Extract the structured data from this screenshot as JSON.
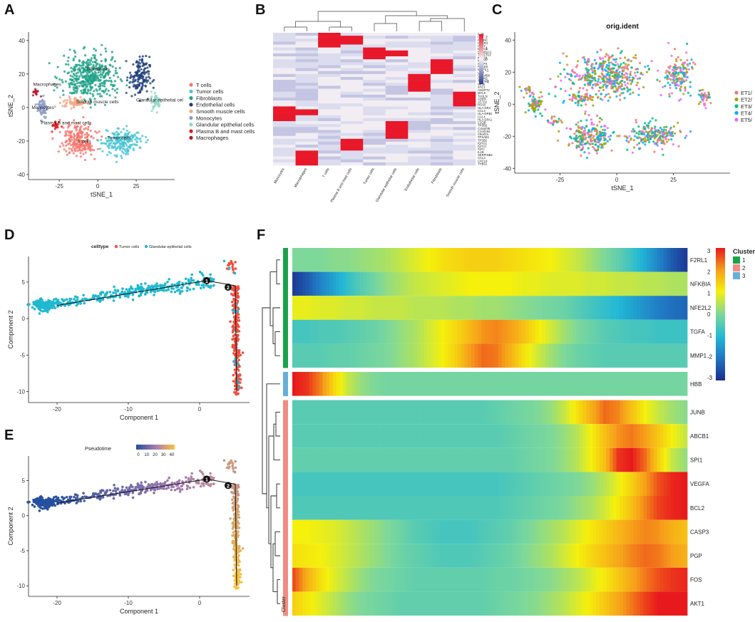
{
  "figure": {
    "panel_labels": [
      "A",
      "B",
      "C",
      "D",
      "E",
      "F"
    ]
  },
  "chart_data": [
    {
      "id": "A",
      "type": "scatter",
      "title": "",
      "xlabel": "tSNE_1",
      "ylabel": "tSNE_2",
      "xlim": [
        -45,
        50
      ],
      "ylim": [
        -43,
        45
      ],
      "xticks": [
        "-25",
        "0",
        "25"
      ],
      "xtick_values": [
        -25,
        0,
        25
      ],
      "yticks": [
        "40",
        "20",
        "0",
        "-20",
        "-40"
      ],
      "ytick_values": [
        40,
        20,
        0,
        -20,
        -40
      ],
      "legend_position": "right",
      "legend": [
        {
          "label": "T cells",
          "color": "#f8766d"
        },
        {
          "label": "Tumor cells",
          "color": "#4bc6d4"
        },
        {
          "label": "Fibroblasts",
          "color": "#1fa187"
        },
        {
          "label": "Endothelial cells",
          "color": "#1e3f7a"
        },
        {
          "label": "Smooth muscle cells",
          "color": "#f4a582"
        },
        {
          "label": "Monocytes",
          "color": "#8e9cc7"
        },
        {
          "label": "Glandular epithelial cells",
          "color": "#8fd6c0"
        },
        {
          "label": "Plasma B and mast cells",
          "color": "#e31a1c"
        },
        {
          "label": "Macrophages",
          "color": "#b2182b"
        }
      ],
      "clusters": [
        {
          "label": "T cells",
          "center": [
            -12,
            -20
          ],
          "spread": [
            9,
            9
          ],
          "n": 220,
          "color": "#f8766d"
        },
        {
          "label": "Tumor cells",
          "center": [
            16,
            -20
          ],
          "spread": [
            11,
            7
          ],
          "n": 200,
          "color": "#4bc6d4"
        },
        {
          "label": "Fibroblasts",
          "center": [
            -5,
            18
          ],
          "spread": [
            16,
            12
          ],
          "n": 420,
          "color": "#1fa187"
        },
        {
          "label": "Endothelial cells",
          "center": [
            27,
            18
          ],
          "spread": [
            6,
            11
          ],
          "n": 150,
          "color": "#1e3f7a"
        },
        {
          "label": "Smooth muscle cells",
          "center": [
            -15,
            3
          ],
          "spread": [
            7,
            3
          ],
          "n": 60,
          "color": "#f4a582"
        },
        {
          "label": "Monocytes",
          "center": [
            -36,
            0
          ],
          "spread": [
            3,
            6
          ],
          "n": 70,
          "color": "#8e9cc7"
        },
        {
          "label": "Glandular epithelial cells",
          "center": [
            38,
            4
          ],
          "spread": [
            3,
            5
          ],
          "n": 40,
          "color": "#8fd6c0"
        },
        {
          "label": "Plasma B and mast cells",
          "center": [
            -27,
            -11
          ],
          "spread": [
            3,
            3
          ],
          "n": 20,
          "color": "#e31a1c"
        },
        {
          "label": "Macrophages",
          "center": [
            -40,
            9
          ],
          "spread": [
            2,
            2
          ],
          "n": 14,
          "color": "#b2182b"
        }
      ],
      "annotations": [
        "Macrophages",
        "Fibroblasts",
        "Smooth muscle cells",
        "Glandular epithelial cel",
        "Monocytes",
        "Plasma B and mast cells",
        "T cells",
        "Tumor cells"
      ]
    },
    {
      "id": "B",
      "type": "heatmap",
      "title": "",
      "columns": [
        "Monocytes",
        "Macrophages",
        "T cells",
        "Plasma B and mast cells",
        "Tumor cells",
        "Glandular epithelial cells",
        "Endothelial cells",
        "Fibroblasts",
        "Smooth muscle cells"
      ],
      "rows": [
        "IL7R",
        "CD7",
        "PTPRC",
        "CXCR4",
        "GNLY",
        "MT1G2",
        "SCGB2A1",
        "TACSTD2",
        "KRT18",
        "MMP7",
        "SFRP4",
        "PTGDS",
        "MMP3",
        "LUM",
        "C11orf96",
        "CLDN5",
        "TM4SF1",
        "SELE",
        "STC1",
        "ANGPT2",
        "MYL9",
        "TAGLN",
        "ADIRF",
        "ACTA2",
        "RGS5",
        "HLA-DRA",
        "CCL3",
        "HLA-DRB1",
        "CCL4",
        "HLA-DPA1",
        "C1QB",
        "TPSB2",
        "C15orf48",
        "C1orf194",
        "C9orf24",
        "TPSAB1",
        "TPSB2",
        "IGHG1",
        "IGHA1",
        "IGKC",
        "IL1B",
        "SERPINB2",
        "CCL3",
        "CXCL8",
        "THBS1"
      ],
      "high_blocks": [
        {
          "col": 2,
          "rows": [
            0,
            4
          ]
        },
        {
          "col": 3,
          "rows": [
            1,
            3
          ]
        },
        {
          "col": 4,
          "rows": [
            5,
            8
          ]
        },
        {
          "col": 5,
          "rows": [
            6,
            7
          ]
        },
        {
          "col": 7,
          "rows": [
            9,
            13
          ]
        },
        {
          "col": 6,
          "rows": [
            14,
            19
          ]
        },
        {
          "col": 8,
          "rows": [
            20,
            24
          ]
        },
        {
          "col": 0,
          "rows": [
            25,
            29
          ]
        },
        {
          "col": 1,
          "rows": [
            26,
            27
          ]
        },
        {
          "col": 5,
          "rows": [
            30,
            35
          ]
        },
        {
          "col": 3,
          "rows": [
            36,
            39
          ]
        },
        {
          "col": 1,
          "rows": [
            40,
            44
          ]
        }
      ],
      "legend_ticks": [
        "2",
        "1",
        "0",
        "-1",
        "-2"
      ],
      "legend_values": [
        2,
        1,
        0,
        -1,
        -2
      ]
    },
    {
      "id": "C",
      "type": "scatter",
      "title": "orig.ident",
      "xlabel": "tSNE_1",
      "ylabel": "tSNE_2",
      "xlim": [
        -45,
        50
      ],
      "ylim": [
        -43,
        45
      ],
      "xticks": [
        "-25",
        "0",
        "25"
      ],
      "xtick_values": [
        -25,
        0,
        25
      ],
      "yticks": [
        "40",
        "20",
        "0",
        "-20",
        "-40"
      ],
      "ytick_values": [
        40,
        20,
        0,
        -20,
        -40
      ],
      "legend_position": "right",
      "legend": [
        {
          "label": "ET1/",
          "color": "#f8766d"
        },
        {
          "label": "ET2/",
          "color": "#a3a500"
        },
        {
          "label": "ET3/",
          "color": "#00bf7d"
        },
        {
          "label": "ET4/",
          "color": "#00b0f6"
        },
        {
          "label": "ET5/",
          "color": "#e76bf3"
        }
      ]
    },
    {
      "id": "D",
      "type": "scatter",
      "title": "",
      "xlabel": "Component 1",
      "ylabel": "Component 2",
      "xlim": [
        -24,
        7
      ],
      "ylim": [
        -11.5,
        8.5
      ],
      "xticks": [
        "-20",
        "-10",
        "0"
      ],
      "xtick_values": [
        -20,
        -10,
        0
      ],
      "yticks": [
        "5",
        "0",
        "-5",
        "-10"
      ],
      "ytick_values": [
        5,
        0,
        -5,
        -10
      ],
      "legend_title": "celltype",
      "legend_position": "top",
      "legend": [
        {
          "label": "Tumor cells",
          "color": "#f04e3e"
        },
        {
          "label": "Glandular epithelial cells",
          "color": "#20b8cf"
        }
      ],
      "branch_points": [
        "1",
        "2"
      ]
    },
    {
      "id": "E",
      "type": "scatter",
      "title": "",
      "xlabel": "Component 1",
      "ylabel": "Component 2",
      "xlim": [
        -24,
        7
      ],
      "ylim": [
        -11.5,
        8.5
      ],
      "xticks": [
        "-20",
        "-10",
        "0"
      ],
      "xtick_values": [
        -20,
        -10,
        0
      ],
      "yticks": [
        "5",
        "0",
        "-5",
        "-10"
      ],
      "ytick_values": [
        5,
        0,
        -5,
        -10
      ],
      "legend_title": "Pseudotime",
      "legend_position": "top",
      "colorbar_ticks": [
        "0",
        "10",
        "20",
        "30",
        "40"
      ],
      "colorbar_values": [
        0,
        10,
        20,
        30,
        40
      ],
      "branch_points": [
        "1",
        "2"
      ]
    },
    {
      "id": "F",
      "type": "heatmap",
      "title": "",
      "genes": [
        "F2RL1",
        "NFKBIA",
        "NFE2L2",
        "TGFA",
        "MMP1",
        "HBB",
        "JUNB",
        "ABCB1",
        "SPI1",
        "VEGFA",
        "BCL2",
        "CASP3",
        "PGP",
        "FOS",
        "AKT1"
      ],
      "gene_cluster": [
        1,
        1,
        1,
        1,
        1,
        3,
        2,
        2,
        2,
        2,
        2,
        2,
        2,
        2,
        2
      ],
      "pseudotime_columns": 30,
      "profiles": [
        [
          0.0,
          0.0,
          0.0,
          0.1,
          0.1,
          0.2,
          0.3,
          0.4,
          0.6,
          0.8,
          1.0,
          1.2,
          1.3,
          1.4,
          1.4,
          1.4,
          1.3,
          1.2,
          1.1,
          1.0,
          0.8,
          0.6,
          0.3,
          0.0,
          -0.3,
          -0.7,
          -1.2,
          -1.8,
          -2.4,
          -2.8
        ],
        [
          -2.8,
          -2.4,
          -1.8,
          -1.3,
          -0.8,
          -0.4,
          -0.1,
          0.2,
          0.4,
          0.6,
          0.7,
          0.8,
          0.9,
          1.0,
          1.0,
          1.0,
          1.0,
          0.9,
          0.9,
          0.8,
          0.8,
          0.8,
          0.7,
          0.7,
          0.6,
          0.6,
          0.5,
          0.5,
          0.4,
          0.4
        ],
        [
          0.9,
          0.9,
          0.8,
          0.8,
          0.7,
          0.7,
          0.6,
          0.6,
          0.6,
          0.5,
          0.5,
          0.5,
          0.4,
          0.4,
          0.3,
          0.3,
          0.2,
          0.1,
          0.0,
          -0.1,
          -0.2,
          -0.4,
          -0.6,
          -0.8,
          -1.0,
          -1.3,
          -1.6,
          -1.9,
          -2.1,
          -2.2
        ],
        [
          -0.6,
          -0.6,
          -0.5,
          -0.5,
          -0.4,
          -0.3,
          -0.2,
          0.0,
          0.2,
          0.4,
          0.7,
          1.0,
          1.3,
          1.7,
          2.1,
          2.2,
          2.0,
          1.6,
          1.1,
          0.7,
          0.3,
          0.0,
          -0.2,
          -0.4,
          -0.5,
          -0.6,
          -0.6,
          -0.7,
          -0.7,
          -0.7
        ],
        [
          -0.4,
          -0.4,
          -0.4,
          -0.3,
          -0.3,
          -0.2,
          -0.1,
          0.0,
          0.2,
          0.4,
          0.7,
          1.0,
          1.4,
          2.0,
          2.4,
          2.3,
          1.8,
          1.2,
          0.7,
          0.3,
          0.0,
          -0.2,
          -0.3,
          -0.4,
          -0.4,
          -0.4,
          -0.4,
          -0.4,
          -0.4,
          -0.4
        ],
        [
          3.0,
          2.8,
          2.2,
          1.3,
          0.6,
          0.2,
          0.0,
          -0.1,
          -0.1,
          -0.1,
          -0.1,
          -0.1,
          -0.1,
          -0.1,
          -0.1,
          -0.1,
          -0.1,
          -0.1,
          -0.1,
          -0.1,
          -0.1,
          -0.1,
          -0.1,
          -0.1,
          -0.1,
          -0.1,
          -0.1,
          -0.1,
          -0.1,
          -0.1
        ],
        [
          -0.4,
          -0.4,
          -0.4,
          -0.4,
          -0.4,
          -0.4,
          -0.4,
          -0.4,
          -0.4,
          -0.4,
          -0.4,
          -0.4,
          -0.4,
          -0.4,
          -0.4,
          -0.3,
          -0.2,
          -0.1,
          0.0,
          0.2,
          0.6,
          1.2,
          1.8,
          2.4,
          2.2,
          1.6,
          1.0,
          0.6,
          0.3,
          0.1
        ],
        [
          -0.4,
          -0.4,
          -0.4,
          -0.4,
          -0.4,
          -0.4,
          -0.4,
          -0.4,
          -0.4,
          -0.4,
          -0.4,
          -0.4,
          -0.4,
          -0.4,
          -0.4,
          -0.4,
          -0.3,
          -0.2,
          -0.1,
          0.0,
          0.2,
          0.5,
          1.0,
          1.6,
          2.1,
          2.3,
          2.0,
          1.5,
          1.0,
          0.6
        ],
        [
          -0.3,
          -0.3,
          -0.3,
          -0.3,
          -0.3,
          -0.3,
          -0.3,
          -0.3,
          -0.3,
          -0.3,
          -0.3,
          -0.3,
          -0.3,
          -0.3,
          -0.3,
          -0.3,
          -0.3,
          -0.2,
          -0.1,
          0.0,
          0.2,
          0.5,
          1.0,
          1.6,
          2.8,
          3.0,
          2.4,
          1.4,
          0.6,
          0.2
        ],
        [
          -0.6,
          -0.6,
          -0.6,
          -0.6,
          -0.6,
          -0.6,
          -0.6,
          -0.6,
          -0.6,
          -0.6,
          -0.6,
          -0.6,
          -0.6,
          -0.6,
          -0.6,
          -0.6,
          -0.5,
          -0.4,
          -0.3,
          -0.2,
          -0.1,
          0.0,
          0.2,
          0.5,
          0.9,
          1.4,
          2.0,
          2.6,
          2.9,
          3.0
        ],
        [
          -0.5,
          -0.5,
          -0.5,
          -0.5,
          -0.5,
          -0.5,
          -0.5,
          -0.5,
          -0.5,
          -0.5,
          -0.5,
          -0.5,
          -0.5,
          -0.5,
          -0.5,
          -0.5,
          -0.4,
          -0.3,
          -0.2,
          -0.1,
          0.0,
          0.2,
          0.4,
          0.7,
          1.1,
          1.6,
          2.2,
          2.7,
          2.9,
          3.0
        ],
        [
          1.0,
          1.0,
          0.9,
          0.8,
          0.6,
          0.4,
          0.2,
          0.0,
          -0.2,
          -0.4,
          -0.5,
          -0.6,
          -0.6,
          -0.6,
          -0.5,
          -0.4,
          -0.3,
          -0.1,
          0.1,
          0.3,
          0.5,
          0.8,
          1.1,
          1.4,
          1.7,
          2.0,
          2.2,
          2.1,
          1.8,
          1.6
        ],
        [
          1.2,
          1.1,
          1.0,
          0.8,
          0.6,
          0.4,
          0.2,
          0.0,
          -0.2,
          -0.3,
          -0.4,
          -0.5,
          -0.5,
          -0.5,
          -0.4,
          -0.3,
          -0.2,
          0.0,
          0.2,
          0.4,
          0.7,
          1.0,
          1.3,
          1.6,
          1.9,
          2.2,
          2.4,
          2.3,
          2.0,
          1.8
        ],
        [
          2.6,
          1.8,
          1.2,
          0.8,
          0.5,
          0.2,
          0.0,
          -0.1,
          -0.2,
          -0.3,
          -0.3,
          -0.3,
          -0.3,
          -0.3,
          -0.3,
          -0.2,
          -0.2,
          -0.1,
          0.0,
          0.1,
          0.3,
          0.5,
          0.8,
          1.1,
          1.5,
          1.9,
          2.3,
          2.6,
          2.8,
          2.9
        ],
        [
          1.4,
          1.1,
          0.8,
          0.5,
          0.2,
          0.0,
          -0.1,
          -0.2,
          -0.3,
          -0.3,
          -0.3,
          -0.3,
          -0.3,
          -0.3,
          -0.3,
          -0.2,
          -0.1,
          0.0,
          0.1,
          0.3,
          0.5,
          0.8,
          1.1,
          1.5,
          1.9,
          2.3,
          2.7,
          3.0,
          3.0,
          3.0
        ]
      ],
      "legend_title": "Cluster",
      "cluster_legend": [
        {
          "label": "1",
          "color": "#1aa24a"
        },
        {
          "label": "2",
          "color": "#f28b82"
        },
        {
          "label": "3",
          "color": "#6aaed6"
        }
      ],
      "colorbar_ticks": [
        "3",
        "2",
        "1",
        "0",
        "-1",
        "-2",
        "-3"
      ],
      "colorbar_values": [
        3,
        2,
        1,
        0,
        -1,
        -2,
        -3
      ],
      "cluster_axis_label": "Cluster"
    }
  ]
}
